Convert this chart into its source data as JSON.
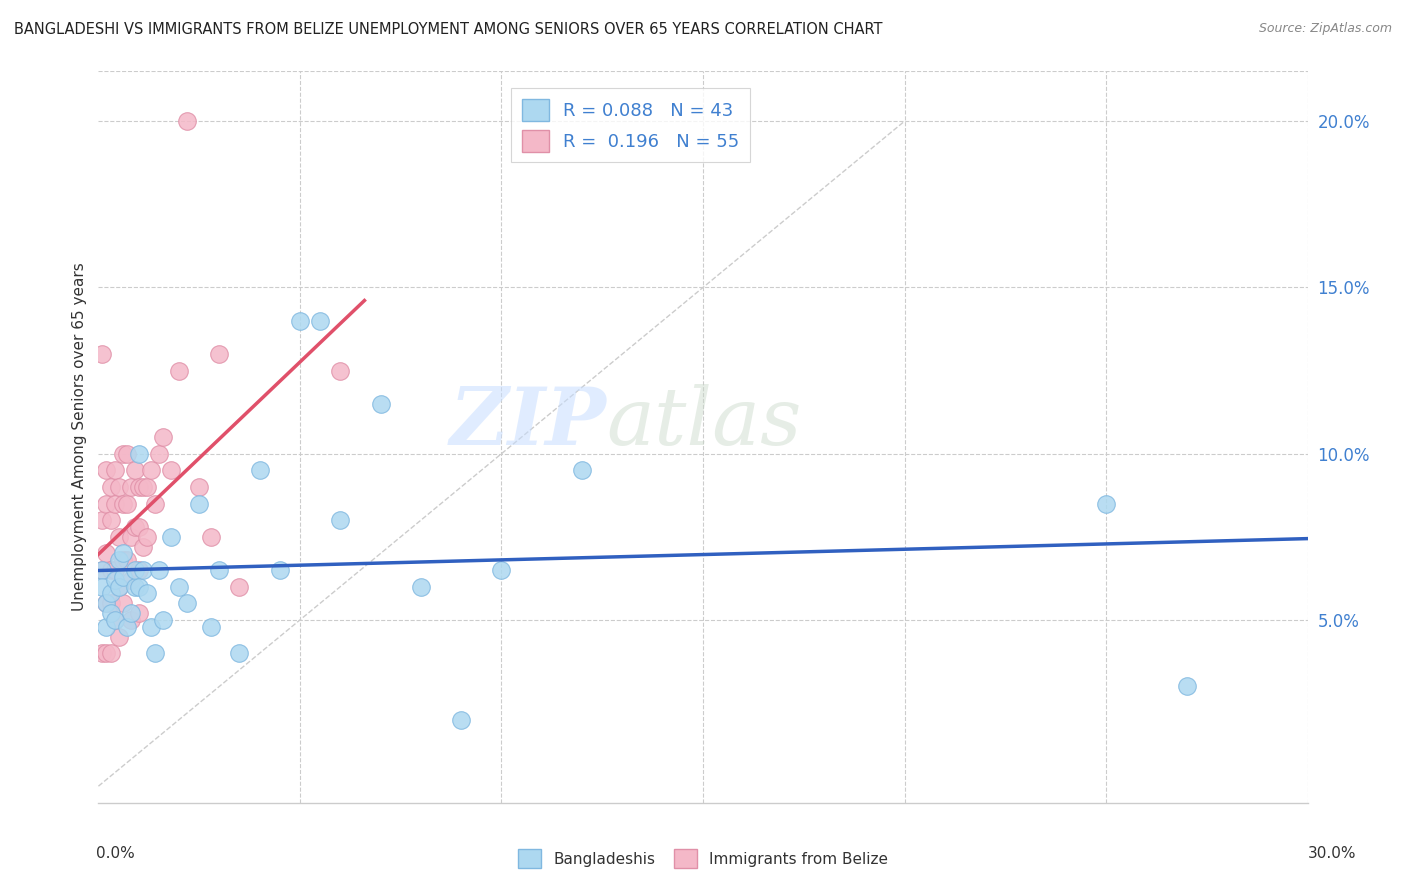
{
  "title": "BANGLADESHI VS IMMIGRANTS FROM BELIZE UNEMPLOYMENT AMONG SENIORS OVER 65 YEARS CORRELATION CHART",
  "source": "Source: ZipAtlas.com",
  "ylabel": "Unemployment Among Seniors over 65 years",
  "ytick_values": [
    0.05,
    0.1,
    0.15,
    0.2
  ],
  "xlim": [
    0.0,
    0.3
  ],
  "ylim": [
    -0.005,
    0.215
  ],
  "legend_r_bangladeshi": "0.088",
  "legend_n_bangladeshi": "43",
  "legend_r_belize": "0.196",
  "legend_n_belize": "55",
  "color_bangladeshi": "#ADD8F0",
  "color_belize": "#F4B8C8",
  "line_color_bangladeshi": "#3060C0",
  "line_color_belize": "#E0506A",
  "watermark_zip": "ZIP",
  "watermark_atlas": "atlas",
  "bangladeshi_x": [
    0.001,
    0.001,
    0.002,
    0.002,
    0.003,
    0.003,
    0.004,
    0.004,
    0.005,
    0.005,
    0.006,
    0.006,
    0.007,
    0.008,
    0.009,
    0.009,
    0.01,
    0.01,
    0.011,
    0.012,
    0.013,
    0.014,
    0.015,
    0.016,
    0.018,
    0.02,
    0.022,
    0.025,
    0.028,
    0.03,
    0.035,
    0.04,
    0.045,
    0.05,
    0.055,
    0.06,
    0.07,
    0.08,
    0.09,
    0.1,
    0.12,
    0.25,
    0.27
  ],
  "bangladeshi_y": [
    0.065,
    0.06,
    0.055,
    0.048,
    0.058,
    0.052,
    0.05,
    0.062,
    0.06,
    0.068,
    0.063,
    0.07,
    0.048,
    0.052,
    0.06,
    0.065,
    0.1,
    0.06,
    0.065,
    0.058,
    0.048,
    0.04,
    0.065,
    0.05,
    0.075,
    0.06,
    0.055,
    0.085,
    0.048,
    0.065,
    0.04,
    0.095,
    0.065,
    0.14,
    0.14,
    0.08,
    0.115,
    0.06,
    0.02,
    0.065,
    0.095,
    0.085,
    0.03
  ],
  "belize_x": [
    0.001,
    0.001,
    0.001,
    0.001,
    0.002,
    0.002,
    0.002,
    0.002,
    0.002,
    0.003,
    0.003,
    0.003,
    0.003,
    0.003,
    0.004,
    0.004,
    0.004,
    0.004,
    0.005,
    0.005,
    0.005,
    0.005,
    0.006,
    0.006,
    0.006,
    0.006,
    0.007,
    0.007,
    0.007,
    0.008,
    0.008,
    0.008,
    0.008,
    0.009,
    0.009,
    0.01,
    0.01,
    0.01,
    0.01,
    0.011,
    0.011,
    0.012,
    0.012,
    0.013,
    0.014,
    0.015,
    0.016,
    0.018,
    0.02,
    0.022,
    0.025,
    0.028,
    0.03,
    0.035,
    0.06
  ],
  "belize_y": [
    0.13,
    0.08,
    0.065,
    0.04,
    0.095,
    0.085,
    0.07,
    0.055,
    0.04,
    0.09,
    0.08,
    0.065,
    0.055,
    0.04,
    0.095,
    0.085,
    0.065,
    0.05,
    0.09,
    0.075,
    0.06,
    0.045,
    0.1,
    0.085,
    0.068,
    0.055,
    0.1,
    0.085,
    0.068,
    0.09,
    0.075,
    0.062,
    0.05,
    0.095,
    0.078,
    0.09,
    0.078,
    0.065,
    0.052,
    0.09,
    0.072,
    0.09,
    0.075,
    0.095,
    0.085,
    0.1,
    0.105,
    0.095,
    0.125,
    0.2,
    0.09,
    0.075,
    0.13,
    0.06,
    0.125
  ]
}
